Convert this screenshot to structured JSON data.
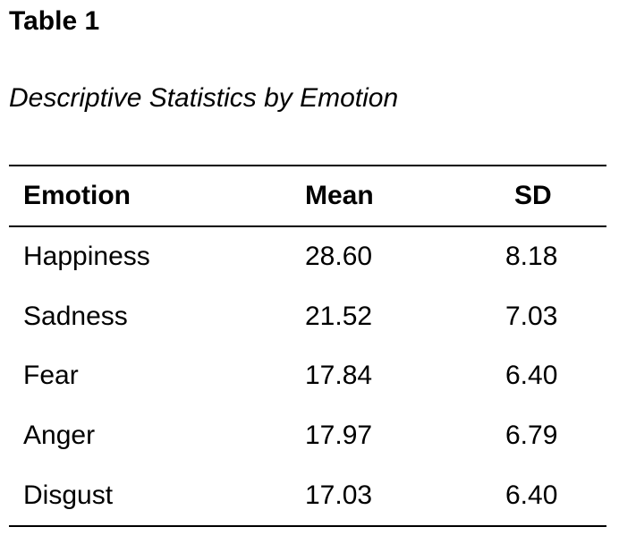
{
  "table": {
    "label": "Table 1",
    "title": "Descriptive Statistics by Emotion",
    "headers": {
      "emotion": "Emotion",
      "mean": "Mean",
      "sd": "SD"
    },
    "rows": [
      {
        "emotion": "Happiness",
        "mean": "28.60",
        "sd": "8.18"
      },
      {
        "emotion": "Sadness",
        "mean": "21.52",
        "sd": "7.03"
      },
      {
        "emotion": "Fear",
        "mean": "17.84",
        "sd": "6.40"
      },
      {
        "emotion": "Anger",
        "mean": "17.97",
        "sd": "6.79"
      },
      {
        "emotion": "Disgust",
        "mean": "17.03",
        "sd": "6.40"
      }
    ]
  }
}
